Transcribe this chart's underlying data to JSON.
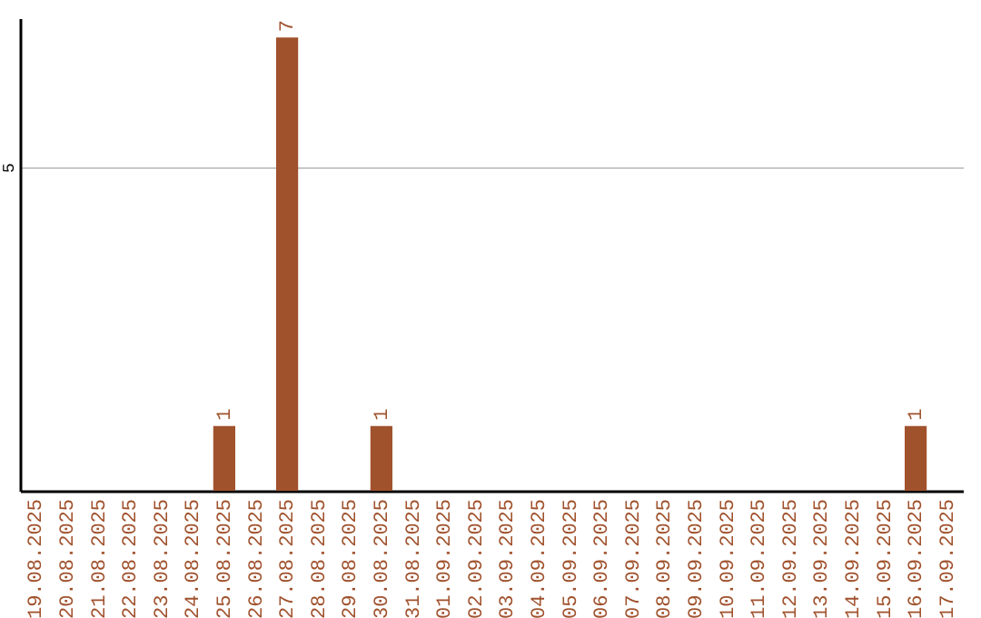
{
  "chart_data": {
    "type": "bar",
    "categories": [
      "19.08.2025",
      "20.08.2025",
      "21.08.2025",
      "22.08.2025",
      "23.08.2025",
      "24.08.2025",
      "25.08.2025",
      "26.08.2025",
      "27.08.2025",
      "28.08.2025",
      "29.08.2025",
      "30.08.2025",
      "31.08.2025",
      "01.09.2025",
      "02.09.2025",
      "03.09.2025",
      "04.09.2025",
      "05.09.2025",
      "06.09.2025",
      "07.09.2025",
      "08.09.2025",
      "09.09.2025",
      "10.09.2025",
      "11.09.2025",
      "12.09.2025",
      "13.09.2025",
      "14.09.2025",
      "15.09.2025",
      "16.09.2025",
      "17.09.2025"
    ],
    "values": [
      0,
      0,
      0,
      0,
      0,
      0,
      1,
      0,
      7,
      0,
      0,
      1,
      0,
      0,
      0,
      0,
      0,
      0,
      0,
      0,
      0,
      0,
      0,
      0,
      0,
      0,
      0,
      0,
      1,
      0
    ],
    "value_labels": [
      null,
      null,
      null,
      null,
      null,
      null,
      "1",
      null,
      "7",
      null,
      null,
      "1",
      null,
      null,
      null,
      null,
      null,
      null,
      null,
      null,
      null,
      null,
      null,
      null,
      null,
      null,
      null,
      null,
      "1",
      null
    ],
    "color": "#a0522d",
    "ylim": [
      0,
      7.3
    ],
    "yticks": [
      5
    ],
    "grid": "y"
  }
}
